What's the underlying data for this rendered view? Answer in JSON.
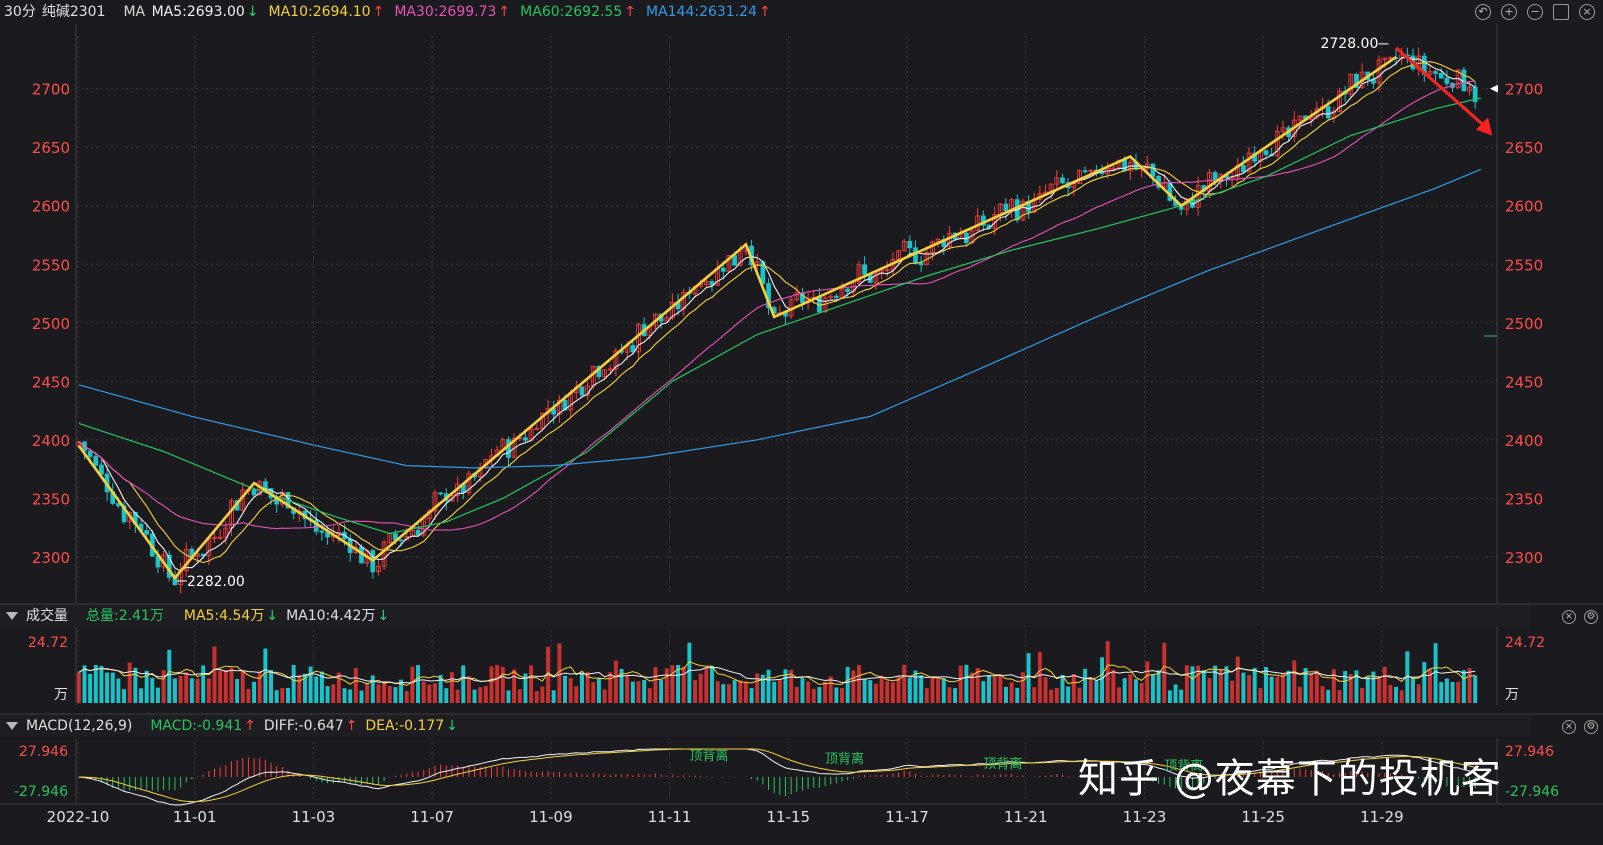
{
  "header": {
    "period": "30分",
    "symbol": "纯碱2301",
    "ma_label": "MA",
    "ma_items": [
      {
        "text": "MA5:2693.00",
        "arrow": "↓",
        "color": "#f0f0f0",
        "arrow_color": "#22d36a"
      },
      {
        "text": "MA10:2694.10",
        "arrow": "↑",
        "color": "#f5d03b",
        "arrow_color": "#ff4040"
      },
      {
        "text": "MA30:2699.73",
        "arrow": "↑",
        "color": "#e850b8",
        "arrow_color": "#ff4040"
      },
      {
        "text": "MA60:2692.55",
        "arrow": "↑",
        "color": "#23c55e",
        "arrow_color": "#ff4040"
      },
      {
        "text": "MA144:2631.24",
        "arrow": "↑",
        "color": "#2f9be8",
        "arrow_color": "#ff4040"
      }
    ],
    "tool_icons": [
      "undo-icon",
      "zoom-in-icon",
      "zoom-out-icon",
      "window-icon",
      "close-icon"
    ]
  },
  "volume_pane": {
    "title": "成交量",
    "total": "总量:2.41万",
    "ma5": "MA5:4.54万",
    "ma5_arrow": "↓",
    "ma10": "MA10:4.42万",
    "ma10_arrow": "↓",
    "axis_top": "24.72",
    "unit": "万"
  },
  "macd_pane": {
    "title": "MACD(12,26,9)",
    "macd": "MACD:-0.941",
    "macd_arrow": "↑",
    "diff": "DIFF:-0.647",
    "diff_arrow": "↑",
    "dea": "DEA:-0.177",
    "dea_arrow": "↓",
    "axis_top": "27.946",
    "axis_bottom": "-27.946",
    "annotations": [
      "顶背离",
      "顶背离",
      "顶背离",
      "顶背离"
    ]
  },
  "watermark": "知乎 @夜幕下的投机客",
  "colors": {
    "up": "#ff3b3b",
    "down": "#19c3c9",
    "grid": "#3a3a3e",
    "axis_text": "#ff4a4a",
    "trend": "#f5d03b",
    "ma5": "#f0f0f0",
    "ma10": "#f5d03b",
    "ma30": "#e850b8",
    "ma60": "#23c55e",
    "ma144": "#2f9be8"
  },
  "chart_data": {
    "type": "candlestick",
    "y_ticks": [
      2300,
      2350,
      2400,
      2450,
      2500,
      2550,
      2600,
      2650,
      2700
    ],
    "ylim": [
      2270,
      2745
    ],
    "x_tick_labels": [
      "2022-10",
      "11-01",
      "11-03",
      "11-07",
      "11-09",
      "11-11",
      "11-15",
      "11-17",
      "11-21",
      "11-23",
      "11-25",
      "11-29"
    ],
    "x_tick_bar_index": [
      0,
      21,
      42,
      63,
      84,
      105,
      126,
      147,
      168,
      189,
      210,
      231
    ],
    "bar_count": 248,
    "annotations": [
      {
        "text": "2728.00",
        "bar": 232,
        "price": 2728
      },
      {
        "text": "2282.00",
        "bar": 17,
        "price": 2282
      }
    ],
    "last_price": 2700,
    "trend_lines": [
      [
        0,
        2395
      ],
      [
        17,
        2282
      ],
      [
        31,
        2363
      ],
      [
        52,
        2297
      ],
      [
        118,
        2567
      ],
      [
        123,
        2505
      ],
      [
        186,
        2642
      ],
      [
        195,
        2600
      ],
      [
        233,
        2727
      ]
    ],
    "red_arrow": {
      "from": [
        233,
        2735
      ],
      "to": [
        250,
        2660
      ]
    },
    "ma144_path": [
      [
        0,
        2447
      ],
      [
        20,
        2420
      ],
      [
        42,
        2395
      ],
      [
        58,
        2378
      ],
      [
        70,
        2376
      ],
      [
        84,
        2378
      ],
      [
        100,
        2385
      ],
      [
        120,
        2400
      ],
      [
        140,
        2420
      ],
      [
        160,
        2462
      ],
      [
        180,
        2505
      ],
      [
        200,
        2545
      ],
      [
        220,
        2580
      ],
      [
        240,
        2615
      ],
      [
        248,
        2631
      ]
    ],
    "ma60_path": [
      [
        0,
        2414
      ],
      [
        15,
        2390
      ],
      [
        30,
        2360
      ],
      [
        45,
        2335
      ],
      [
        55,
        2320
      ],
      [
        65,
        2330
      ],
      [
        75,
        2350
      ],
      [
        90,
        2390
      ],
      [
        105,
        2450
      ],
      [
        120,
        2490
      ],
      [
        135,
        2515
      ],
      [
        150,
        2540
      ],
      [
        165,
        2562
      ],
      [
        180,
        2580
      ],
      [
        195,
        2600
      ],
      [
        210,
        2625
      ],
      [
        225,
        2660
      ],
      [
        240,
        2683
      ],
      [
        248,
        2692
      ]
    ],
    "volume_ylim": [
      0,
      24.72
    ],
    "macd_ylim": [
      -27.946,
      27.946
    ]
  }
}
